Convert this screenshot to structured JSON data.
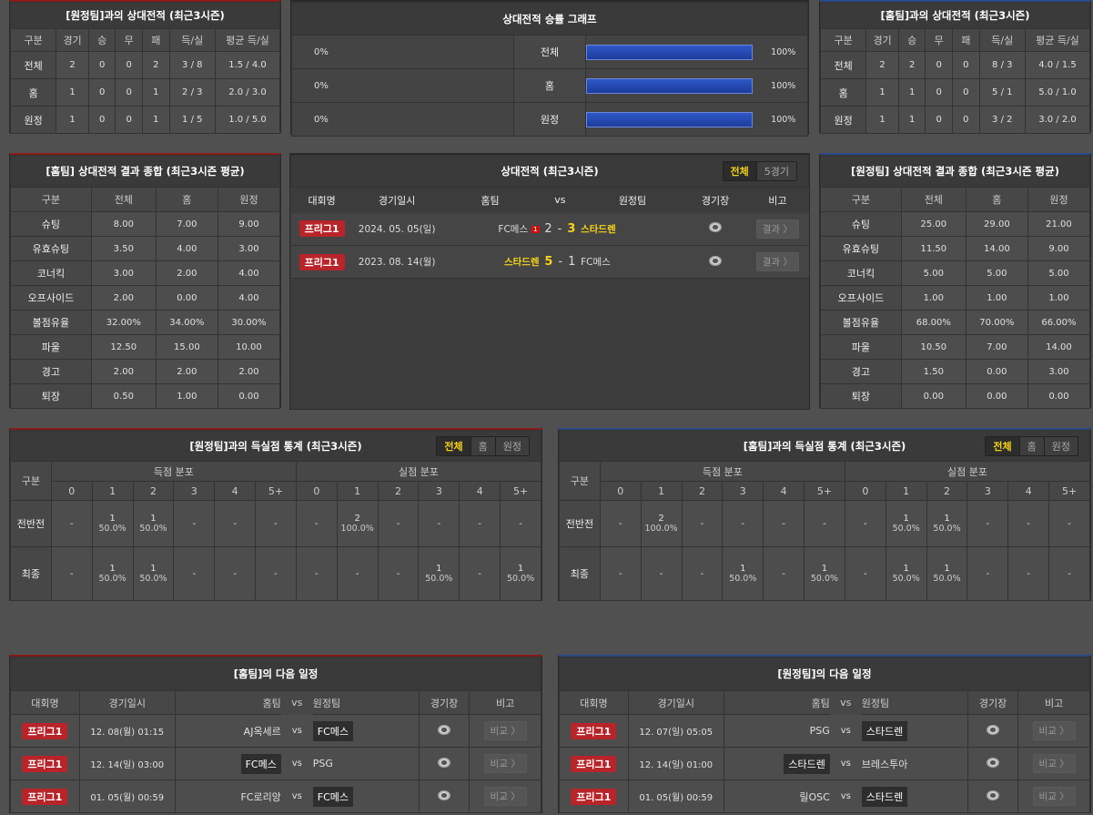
{
  "colors": {
    "league_badge": "#b8242a",
    "highlight": "#f5d21a",
    "bar": "#2f57c8",
    "home_accent": "#8a1a1a",
    "away_accent": "#2a4a8a"
  },
  "h2h_away": {
    "title": "[원정팀]과의 상대전적 (최근3시즌)",
    "headers": [
      "구분",
      "경기",
      "승",
      "무",
      "패",
      "득/실",
      "평균 득/실"
    ],
    "rows": [
      [
        "전체",
        "2",
        "0",
        "0",
        "2",
        "3 / 8",
        "1.5 / 4.0"
      ],
      [
        "홈",
        "1",
        "0",
        "0",
        "1",
        "2 / 3",
        "2.0 / 3.0"
      ],
      [
        "원정",
        "1",
        "0",
        "0",
        "1",
        "1 / 5",
        "1.0 / 5.0"
      ]
    ]
  },
  "h2h_home": {
    "title": "[홈팀]과의 상대전적 (최근3시즌)",
    "headers": [
      "구분",
      "경기",
      "승",
      "무",
      "패",
      "득/실",
      "평균 득/실"
    ],
    "rows": [
      [
        "전체",
        "2",
        "2",
        "0",
        "0",
        "8 / 3",
        "4.0 / 1.5"
      ],
      [
        "홈",
        "1",
        "1",
        "0",
        "0",
        "5 / 1",
        "5.0 / 1.0"
      ],
      [
        "원정",
        "1",
        "1",
        "0",
        "0",
        "3 / 2",
        "3.0 / 2.0"
      ]
    ]
  },
  "win_graph": {
    "title": "상대전적 승률 그래프",
    "rows": [
      {
        "left": "0%",
        "label": "전체",
        "right": "100%",
        "value": 100
      },
      {
        "left": "0%",
        "label": "홈",
        "right": "100%",
        "value": 100
      },
      {
        "left": "0%",
        "label": "원정",
        "right": "100%",
        "value": 100
      }
    ]
  },
  "summary_home": {
    "title": "[홈팀] 상대전적 결과 종합 (최근3시즌 평균)",
    "headers": [
      "구분",
      "전체",
      "홈",
      "원정"
    ],
    "rows": [
      [
        "슈팅",
        "8.00",
        "7.00",
        "9.00"
      ],
      [
        "유효슈팅",
        "3.50",
        "4.00",
        "3.00"
      ],
      [
        "코너킥",
        "3.00",
        "2.00",
        "4.00"
      ],
      [
        "오프사이드",
        "2.00",
        "0.00",
        "4.00"
      ],
      [
        "볼점유율",
        "32.00%",
        "34.00%",
        "30.00%"
      ],
      [
        "파울",
        "12.50",
        "15.00",
        "10.00"
      ],
      [
        "경고",
        "2.00",
        "2.00",
        "2.00"
      ],
      [
        "퇴장",
        "0.50",
        "1.00",
        "0.00"
      ]
    ]
  },
  "summary_away": {
    "title": "[원정팀] 상대전적 결과 종합 (최근3시즌 평균)",
    "headers": [
      "구분",
      "전체",
      "홈",
      "원정"
    ],
    "rows": [
      [
        "슈팅",
        "25.00",
        "29.00",
        "21.00"
      ],
      [
        "유효슈팅",
        "11.50",
        "14.00",
        "9.00"
      ],
      [
        "코너킥",
        "5.00",
        "5.00",
        "5.00"
      ],
      [
        "오프사이드",
        "1.00",
        "1.00",
        "1.00"
      ],
      [
        "볼점유율",
        "68.00%",
        "70.00%",
        "66.00%"
      ],
      [
        "파울",
        "10.50",
        "7.00",
        "14.00"
      ],
      [
        "경고",
        "1.50",
        "0.00",
        "3.00"
      ],
      [
        "퇴장",
        "0.00",
        "0.00",
        "0.00"
      ]
    ]
  },
  "h2h_matches": {
    "title": "상대전적 (최근3시즌)",
    "tabs": [
      "전체",
      "5경기"
    ],
    "headers": [
      "대회명",
      "경기일시",
      "홈팀",
      "vs",
      "원정팀",
      "경기장",
      "비고"
    ],
    "rows": [
      {
        "league": "프리그1",
        "date": "2024. 05. 05(일)",
        "home": "FC메스",
        "red_card": "1",
        "home_score": "2",
        "sep": "-",
        "away_score": "3",
        "away": "스타드렌",
        "winner": "away",
        "action": "결과 〉"
      },
      {
        "league": "프리그1",
        "date": "2023. 08. 14(월)",
        "home": "스타드렌",
        "red_card": "",
        "home_score": "5",
        "sep": "-",
        "away_score": "1",
        "away": "FC메스",
        "winner": "home",
        "action": "결과 〉"
      }
    ]
  },
  "dist_away": {
    "title": "[원정팀]과의 득실점 통계 (최근3시즌)",
    "tabs": [
      "전체",
      "홈",
      "원정"
    ],
    "col_label": "구분",
    "group1": "득점 분포",
    "group2": "실점 분포",
    "cols": [
      "0",
      "1",
      "2",
      "3",
      "4",
      "5+"
    ],
    "rows": [
      {
        "label": "전반전",
        "cells": [
          [
            "-"
          ],
          [
            "1",
            "50.0%"
          ],
          [
            "1",
            "50.0%"
          ],
          [
            "-"
          ],
          [
            "-"
          ],
          [
            "-"
          ],
          [
            "-"
          ],
          [
            "2",
            "100.0%"
          ],
          [
            "-"
          ],
          [
            "-"
          ],
          [
            "-"
          ],
          [
            "-"
          ]
        ]
      },
      {
        "label": "최종",
        "cells": [
          [
            "-"
          ],
          [
            "1",
            "50.0%"
          ],
          [
            "1",
            "50.0%"
          ],
          [
            "-"
          ],
          [
            "-"
          ],
          [
            "-"
          ],
          [
            "-"
          ],
          [
            "-"
          ],
          [
            "-"
          ],
          [
            "1",
            "50.0%"
          ],
          [
            "-"
          ],
          [
            "1",
            "50.0%"
          ]
        ]
      }
    ]
  },
  "dist_home": {
    "title": "[홈팀]과의 득실점 통계 (최근3시즌)",
    "tabs": [
      "전체",
      "홈",
      "원정"
    ],
    "col_label": "구분",
    "group1": "득점 분포",
    "group2": "실점 분포",
    "cols": [
      "0",
      "1",
      "2",
      "3",
      "4",
      "5+"
    ],
    "rows": [
      {
        "label": "전반전",
        "cells": [
          [
            "-"
          ],
          [
            "2",
            "100.0%"
          ],
          [
            "-"
          ],
          [
            "-"
          ],
          [
            "-"
          ],
          [
            "-"
          ],
          [
            "-"
          ],
          [
            "1",
            "50.0%"
          ],
          [
            "1",
            "50.0%"
          ],
          [
            "-"
          ],
          [
            "-"
          ],
          [
            "-"
          ]
        ]
      },
      {
        "label": "최종",
        "cells": [
          [
            "-"
          ],
          [
            "-"
          ],
          [
            "-"
          ],
          [
            "1",
            "50.0%"
          ],
          [
            "-"
          ],
          [
            "1",
            "50.0%"
          ],
          [
            "-"
          ],
          [
            "1",
            "50.0%"
          ],
          [
            "1",
            "50.0%"
          ],
          [
            "-"
          ],
          [
            "-"
          ],
          [
            "-"
          ]
        ]
      }
    ]
  },
  "next_home": {
    "title": "[홈팀]의 다음 일정",
    "headers": [
      "대회명",
      "경기일시",
      "홈팀",
      "vs",
      "원정팀",
      "경기장",
      "비고"
    ],
    "rows": [
      {
        "league": "프리그1",
        "date": "12. 08(월) 01:15",
        "home": "AJ옥세르",
        "away": "FC메스",
        "focus": "away",
        "action": "비교 〉"
      },
      {
        "league": "프리그1",
        "date": "12. 14(일) 03:00",
        "home": "FC메스",
        "away": "PSG",
        "focus": "home",
        "action": "비교 〉"
      },
      {
        "league": "프리그1",
        "date": "01. 05(월) 00:59",
        "home": "FC로리앙",
        "away": "FC메스",
        "focus": "away",
        "action": "비교 〉"
      }
    ]
  },
  "next_away": {
    "title": "[원정팀]의 다음 일정",
    "headers": [
      "대회명",
      "경기일시",
      "홈팀",
      "vs",
      "원정팀",
      "경기장",
      "비고"
    ],
    "rows": [
      {
        "league": "프리그1",
        "date": "12. 07(일) 05:05",
        "home": "PSG",
        "away": "스타드렌",
        "focus": "away",
        "action": "비교 〉"
      },
      {
        "league": "프리그1",
        "date": "12. 14(일) 01:00",
        "home": "스타드렌",
        "away": "브레스투아",
        "focus": "home",
        "action": "비교 〉"
      },
      {
        "league": "프리그1",
        "date": "01. 05(월) 00:59",
        "home": "릴OSC",
        "away": "스타드렌",
        "focus": "away",
        "action": "비교 〉"
      }
    ]
  }
}
